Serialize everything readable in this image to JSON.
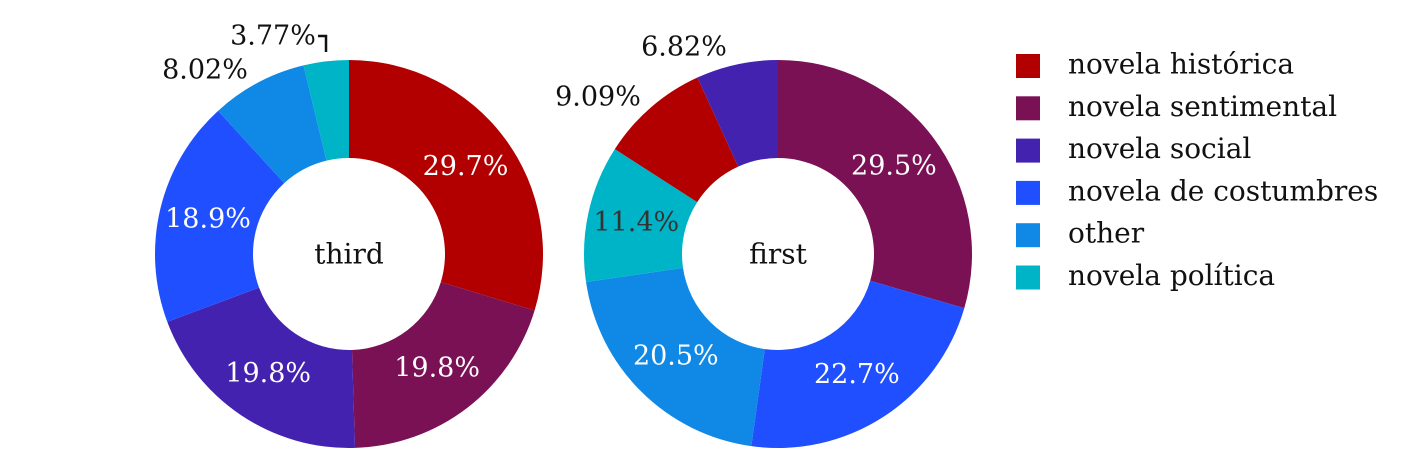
{
  "chart_data": [
    {
      "type": "pie",
      "style": "donut",
      "center_label": "third",
      "slices": [
        {
          "name": "novela histórica",
          "value": 29.7,
          "label": "29.7%",
          "color": "#b20000",
          "label_color": "#ffffff"
        },
        {
          "name": "novela sentimental",
          "value": 19.8,
          "label": "19.8%",
          "color": "#7a1155",
          "label_color": "#ffffff"
        },
        {
          "name": "novela social",
          "value": 19.8,
          "label": "19.8%",
          "color": "#4422b0",
          "label_color": "#ffffff"
        },
        {
          "name": "novela de costumbres",
          "value": 18.9,
          "label": "18.9%",
          "color": "#1f4fff",
          "label_color": "#ffffff"
        },
        {
          "name": "other",
          "value": 8.02,
          "label": "8.02%",
          "color": "#0f88e6",
          "label_color": "#111111"
        },
        {
          "name": "novela política",
          "value": 3.77,
          "label": "3.77%",
          "color": "#00b4c8",
          "label_color": "#111111"
        }
      ]
    },
    {
      "type": "pie",
      "style": "donut",
      "center_label": "first",
      "slices": [
        {
          "name": "novela sentimental",
          "value": 29.5,
          "label": "29.5%",
          "color": "#7a1155",
          "label_color": "#ffffff"
        },
        {
          "name": "novela de costumbres",
          "value": 22.7,
          "label": "22.7%",
          "color": "#1f4fff",
          "label_color": "#ffffff"
        },
        {
          "name": "other",
          "value": 20.5,
          "label": "20.5%",
          "color": "#0f88e6",
          "label_color": "#ffffff"
        },
        {
          "name": "novela política",
          "value": 11.4,
          "label": "11.4%",
          "color": "#00b4c8",
          "label_color": "#333333"
        },
        {
          "name": "novela histórica",
          "value": 9.09,
          "label": "9.09%",
          "color": "#b20000",
          "label_color": "#111111"
        },
        {
          "name": "novela social",
          "value": 6.82,
          "label": "6.82%",
          "color": "#4422b0",
          "label_color": "#111111"
        }
      ]
    }
  ],
  "legend": {
    "placement": "right",
    "items": [
      {
        "label": "novela histórica",
        "color": "#b20000"
      },
      {
        "label": "novela sentimental",
        "color": "#7a1155"
      },
      {
        "label": "novela social",
        "color": "#4422b0"
      },
      {
        "label": "novela de costumbres",
        "color": "#1f4fff"
      },
      {
        "label": "other",
        "color": "#0f88e6"
      },
      {
        "label": "novela política",
        "color": "#00b4c8"
      }
    ]
  }
}
